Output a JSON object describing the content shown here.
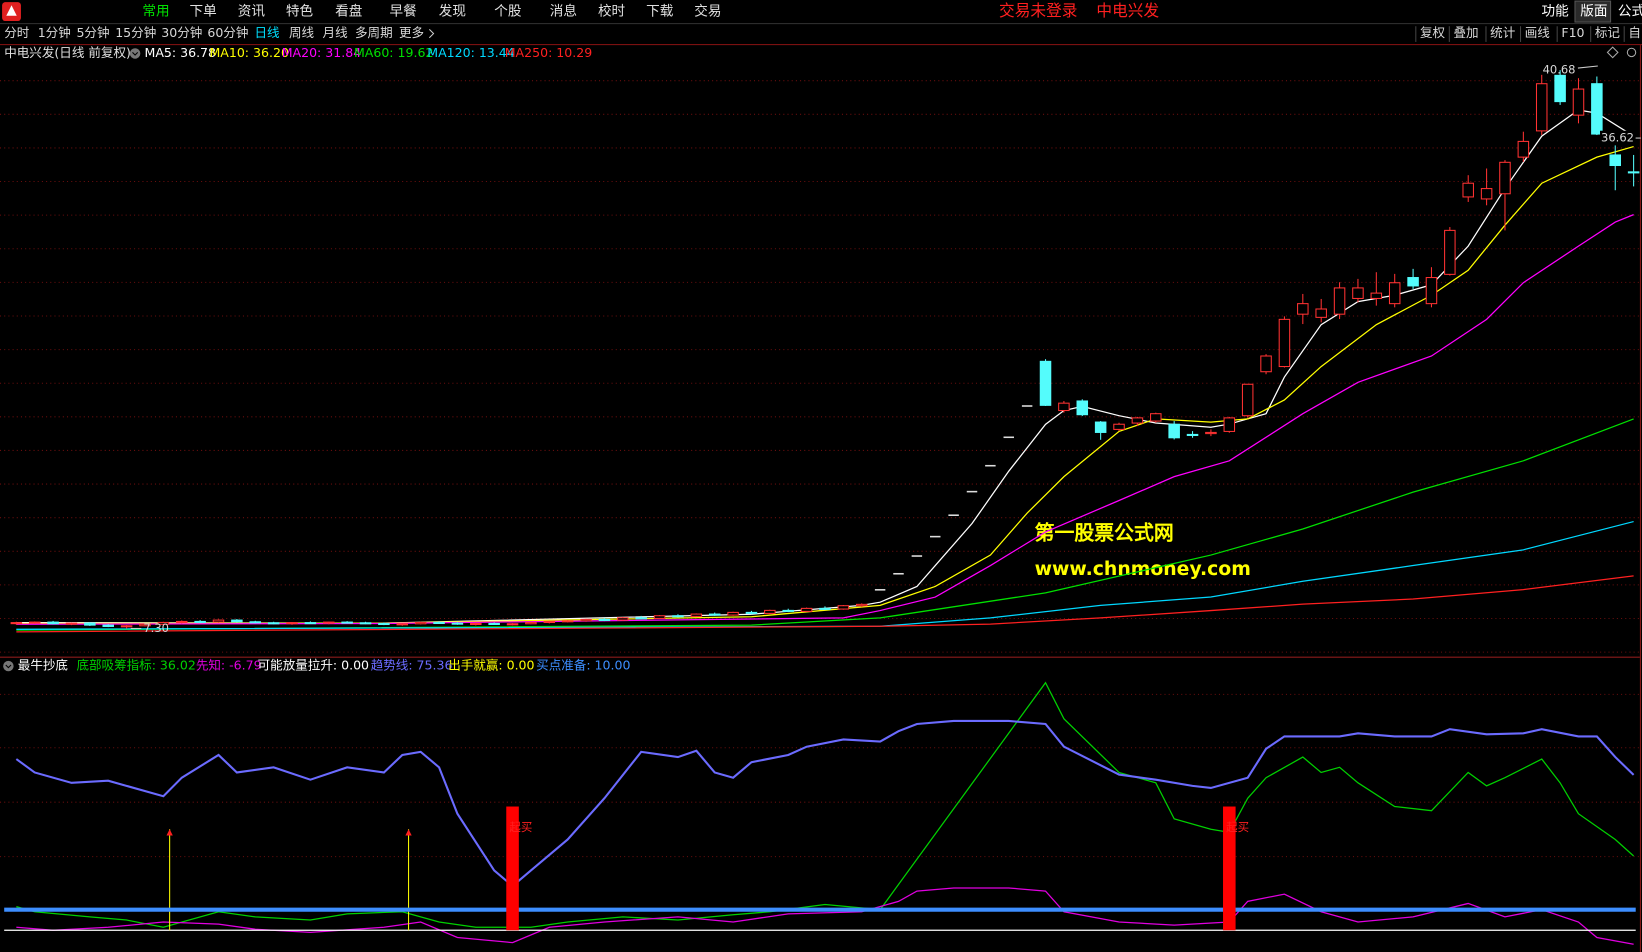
{
  "menu": {
    "items": [
      "常用",
      "下单",
      "资讯",
      "特色",
      "看盘",
      "早餐",
      "发现",
      "个股",
      "消息",
      "校时",
      "下载",
      "交易"
    ],
    "status": "交易未登录",
    "stock": "中电兴发",
    "right": [
      "功能",
      "版面",
      "公式"
    ]
  },
  "toolbar": {
    "periods": [
      "分时",
      "1分钟",
      "5分钟",
      "15分钟",
      "30分钟",
      "60分钟",
      "日线",
      "周线",
      "月线",
      "多周期",
      "更多"
    ],
    "tools": [
      "复权",
      "叠加",
      "统计",
      "画线",
      "F10",
      "标记",
      "自"
    ]
  },
  "watermark": {
    "title": "第一股票公式网",
    "url": "www.chnmoney.com"
  },
  "chart_data": [
    {
      "type": "candlestick",
      "title": "中电兴发(日线 前复权)",
      "ylim": [
        5.74,
        41.24
      ],
      "values": [
        [
          7.6,
          7.7,
          7.52,
          7.65
        ],
        [
          7.65,
          7.72,
          7.58,
          7.68
        ],
        [
          7.68,
          7.75,
          7.55,
          7.58
        ],
        [
          7.58,
          7.66,
          7.5,
          7.62
        ],
        [
          7.62,
          7.68,
          7.45,
          7.5
        ],
        [
          7.5,
          7.56,
          7.38,
          7.42
        ],
        [
          7.42,
          7.5,
          7.3,
          7.46
        ],
        [
          7.46,
          7.6,
          7.42,
          7.55
        ],
        [
          7.55,
          7.7,
          7.5,
          7.66
        ],
        [
          7.66,
          7.78,
          7.6,
          7.72
        ],
        [
          7.72,
          7.8,
          7.62,
          7.68
        ],
        [
          7.68,
          7.85,
          7.64,
          7.8
        ],
        [
          7.8,
          7.86,
          7.66,
          7.7
        ],
        [
          7.7,
          7.76,
          7.6,
          7.64
        ],
        [
          7.64,
          7.7,
          7.55,
          7.6
        ],
        [
          7.6,
          7.68,
          7.52,
          7.65
        ],
        [
          7.65,
          7.72,
          7.58,
          7.62
        ],
        [
          7.62,
          7.7,
          7.55,
          7.68
        ],
        [
          7.68,
          7.74,
          7.6,
          7.64
        ],
        [
          7.64,
          7.7,
          7.56,
          7.6
        ],
        [
          7.6,
          7.66,
          7.5,
          7.55
        ],
        [
          7.55,
          7.62,
          7.46,
          7.58
        ],
        [
          7.58,
          7.7,
          7.54,
          7.66
        ],
        [
          7.66,
          7.72,
          7.58,
          7.62
        ],
        [
          7.62,
          7.68,
          7.52,
          7.56
        ],
        [
          7.56,
          7.64,
          7.48,
          7.6
        ],
        [
          7.6,
          7.66,
          7.52,
          7.55
        ],
        [
          7.55,
          7.62,
          7.48,
          7.58
        ],
        [
          7.58,
          7.7,
          7.55,
          7.66
        ],
        [
          7.66,
          7.75,
          7.6,
          7.72
        ],
        [
          7.72,
          7.8,
          7.66,
          7.76
        ],
        [
          7.76,
          7.88,
          7.7,
          7.84
        ],
        [
          7.84,
          7.92,
          7.74,
          7.8
        ],
        [
          7.8,
          7.98,
          7.76,
          7.94
        ],
        [
          7.94,
          8.05,
          7.86,
          7.9
        ],
        [
          7.9,
          8.1,
          7.88,
          8.06
        ],
        [
          8.06,
          8.15,
          7.96,
          8.02
        ],
        [
          8.02,
          8.2,
          7.98,
          8.16
        ],
        [
          8.16,
          8.25,
          8.05,
          8.1
        ],
        [
          8.1,
          8.3,
          8.06,
          8.26
        ],
        [
          8.26,
          8.35,
          8.15,
          8.2
        ],
        [
          8.2,
          8.42,
          8.16,
          8.38
        ],
        [
          8.38,
          8.48,
          8.28,
          8.32
        ],
        [
          8.32,
          8.55,
          8.3,
          8.5
        ],
        [
          8.5,
          8.62,
          8.4,
          8.46
        ],
        [
          8.46,
          8.7,
          8.42,
          8.66
        ],
        [
          8.66,
          8.8,
          8.58,
          8.74
        ],
        [
          9.61,
          9.61,
          9.61,
          9.61
        ],
        [
          10.57,
          10.57,
          10.57,
          10.57
        ],
        [
          11.63,
          11.63,
          11.63,
          11.63
        ],
        [
          12.79,
          12.79,
          12.79,
          12.79
        ],
        [
          14.07,
          14.07,
          14.07,
          14.07
        ],
        [
          15.48,
          15.48,
          15.48,
          15.48
        ],
        [
          17.03,
          17.03,
          17.03,
          17.03
        ],
        [
          18.73,
          18.73,
          18.73,
          18.73
        ],
        [
          20.6,
          20.6,
          20.6,
          20.6
        ],
        [
          23.27,
          23.4,
          20.6,
          20.64
        ],
        [
          20.33,
          20.9,
          20.2,
          20.77
        ],
        [
          20.9,
          21.0,
          20.0,
          20.08
        ],
        [
          19.64,
          19.7,
          18.58,
          19.02
        ],
        [
          19.2,
          19.6,
          19.1,
          19.51
        ],
        [
          19.58,
          19.95,
          19.4,
          19.89
        ],
        [
          19.7,
          20.2,
          19.6,
          20.14
        ],
        [
          19.51,
          19.7,
          18.6,
          18.7
        ],
        [
          18.9,
          19.1,
          18.7,
          18.88
        ],
        [
          18.95,
          19.2,
          18.8,
          19.02
        ],
        [
          19.08,
          19.95,
          19.0,
          19.89
        ],
        [
          20.02,
          21.9,
          19.9,
          21.9
        ],
        [
          22.65,
          23.7,
          22.5,
          23.59
        ],
        [
          22.96,
          25.96,
          22.9,
          25.78
        ],
        [
          26.09,
          27.3,
          25.5,
          26.72
        ],
        [
          25.9,
          27.0,
          25.6,
          26.4
        ],
        [
          26.09,
          28.0,
          25.8,
          27.66
        ],
        [
          27.03,
          28.2,
          26.8,
          27.66
        ],
        [
          27.03,
          28.6,
          26.6,
          27.35
        ],
        [
          26.72,
          28.5,
          26.5,
          27.97
        ],
        [
          28.28,
          28.8,
          27.6,
          27.78
        ],
        [
          26.72,
          28.9,
          26.5,
          28.28
        ],
        [
          28.47,
          31.3,
          28.4,
          31.1
        ],
        [
          33.1,
          34.4,
          32.8,
          33.92
        ],
        [
          32.98,
          34.8,
          32.6,
          33.6
        ],
        [
          33.29,
          35.3,
          31.1,
          35.17
        ],
        [
          35.48,
          37.0,
          35.2,
          36.42
        ],
        [
          37.05,
          40.4,
          36.8,
          39.87
        ],
        [
          40.37,
          40.68,
          38.6,
          38.8
        ],
        [
          37.99,
          40.2,
          37.5,
          39.55
        ],
        [
          39.87,
          40.3,
          36.8,
          36.86
        ],
        [
          35.61,
          36.7,
          33.5,
          34.98
        ],
        [
          34.6,
          35.61,
          33.73,
          34.55
        ]
      ],
      "colors": {
        "up": "#ff3232",
        "down": "#54fcfc",
        "flat": "#dddddd"
      },
      "series": [
        {
          "label": "MA5: 36.78",
          "color": "#ffffff",
          "x": [
            0,
            20,
            40,
            46,
            47,
            49,
            50,
            52,
            54,
            56,
            57,
            58,
            60,
            62,
            65,
            66,
            68,
            69,
            71,
            73,
            75,
            77,
            79,
            81,
            83,
            85,
            86,
            88
          ],
          "values": [
            7.65,
            7.62,
            8.15,
            8.68,
            8.87,
            9.81,
            11.06,
            13.57,
            16.7,
            19.5,
            20.33,
            20.58,
            20.02,
            19.58,
            19.33,
            19.52,
            20.14,
            22.33,
            25.46,
            26.84,
            27.22,
            27.85,
            30.16,
            33.6,
            36.74,
            38.3,
            38.11,
            36.74
          ]
        },
        {
          "label": "MA10: 36.20",
          "color": "#ffff00",
          "x": [
            0,
            20,
            40,
            47,
            50,
            53,
            55,
            57,
            60,
            62,
            65,
            67,
            69,
            71,
            74,
            77,
            79,
            81,
            83,
            86,
            88
          ],
          "values": [
            7.6,
            7.62,
            8.0,
            8.68,
            9.81,
            11.69,
            14.2,
            16.38,
            19.08,
            19.83,
            19.64,
            19.83,
            20.96,
            22.96,
            25.46,
            27.22,
            28.72,
            31.41,
            33.92,
            35.48,
            36.11
          ]
        },
        {
          "label": "MA20: 31.84",
          "color": "#ff00ff",
          "x": [
            0,
            20,
            45,
            47,
            50,
            53,
            56,
            60,
            63,
            66,
            70,
            73,
            77,
            80,
            82,
            85,
            87,
            88
          ],
          "values": [
            7.55,
            7.6,
            7.93,
            8.37,
            9.18,
            11.06,
            13.07,
            14.95,
            16.38,
            17.32,
            20.14,
            22.02,
            23.59,
            25.78,
            27.97,
            30.16,
            31.6,
            32.04
          ]
        },
        {
          "label": "MA60: 19.62",
          "color": "#00e000",
          "x": [
            0,
            40,
            47,
            56,
            65,
            70,
            76,
            82,
            88
          ],
          "values": [
            7.2,
            7.5,
            7.93,
            9.43,
            11.69,
            13.25,
            15.45,
            17.32,
            19.83
          ]
        },
        {
          "label": "MA120: 13.44",
          "color": "#00d8ff",
          "x": [
            0,
            47,
            53,
            59,
            65,
            70,
            76,
            82,
            88
          ],
          "values": [
            7.25,
            7.43,
            7.93,
            8.68,
            9.18,
            10.12,
            11.06,
            12.0,
            13.69
          ]
        },
        {
          "label": "MA250: 10.29",
          "color": "#ff2020",
          "x": [
            0,
            47,
            53,
            59,
            65,
            70,
            76,
            82,
            88
          ],
          "values": [
            7.1,
            7.43,
            7.56,
            7.93,
            8.37,
            8.75,
            9.06,
            9.62,
            10.44
          ]
        }
      ],
      "annotations": [
        {
          "value": 40.68,
          "x": 84
        },
        {
          "value": 36.62,
          "x": 86
        },
        {
          "value": 7.3,
          "label": "7.30",
          "x": 6
        }
      ]
    },
    {
      "type": "indicator",
      "title": "最牛抄底",
      "ylim": [
        -10.5,
        122
      ],
      "series": [
        {
          "label": "底部吸筹指标: 36.02",
          "color": "#00d000",
          "kind": "line",
          "x": [
            0,
            1,
            4,
            6,
            8,
            11,
            13,
            16,
            18,
            21,
            23,
            25,
            28,
            30,
            33,
            36,
            39,
            41,
            44,
            47,
            56,
            57,
            60,
            62,
            63,
            65,
            66,
            67,
            68,
            70,
            71,
            72,
            73,
            75,
            77,
            79,
            80,
            81,
            83,
            84,
            85,
            87,
            88
          ],
          "values": [
            11.5,
            9,
            6.5,
            5,
            1.5,
            9,
            6.5,
            5,
            8,
            9,
            4,
            1.5,
            1.5,
            4,
            6.5,
            5,
            7.5,
            9,
            12.5,
            10,
            120,
            102.5,
            76.5,
            71.5,
            54,
            49,
            47.5,
            64,
            74,
            84,
            76.5,
            79,
            71.5,
            60,
            58,
            76.5,
            70,
            74,
            83,
            71.5,
            56.5,
            44,
            36.02
          ]
        },
        {
          "label": "先知: -6.79",
          "color": "#e000e0",
          "kind": "line",
          "x": [
            0,
            2,
            5,
            8,
            11,
            13,
            16,
            20,
            22,
            24,
            27,
            29,
            32,
            36,
            39,
            42,
            46,
            48,
            49,
            51,
            54,
            56,
            57,
            60,
            63,
            66,
            67,
            69,
            71,
            73,
            76,
            79,
            81,
            83,
            85,
            86,
            88
          ],
          "values": [
            1.5,
            0,
            1.5,
            4,
            3,
            0.5,
            -1,
            1.5,
            4,
            -3.5,
            -6,
            1.5,
            4,
            6.5,
            4,
            8,
            9,
            14,
            19,
            20.5,
            20.5,
            19,
            9,
            4,
            2.5,
            4,
            14,
            17.5,
            9,
            4,
            6.5,
            13,
            6.5,
            10,
            4,
            -3.5,
            -6.79
          ]
        },
        {
          "label": "可能放量拉升: 0.00",
          "color": "#ffffff",
          "kind": "hline",
          "value": 0
        },
        {
          "label": "趋势线: 75.36",
          "color": "#6b6bff",
          "kind": "line",
          "x": [
            0,
            1,
            3,
            5,
            8,
            9,
            11,
            12,
            14,
            16,
            18,
            20,
            21,
            22,
            23,
            24,
            26,
            27,
            28,
            30,
            32,
            34,
            36,
            37,
            38,
            39,
            40,
            42,
            43,
            45,
            47,
            48,
            49,
            51,
            54,
            56,
            57,
            60,
            62,
            64,
            65,
            67,
            68,
            69,
            72,
            73,
            75,
            77,
            78,
            80,
            82,
            83,
            85,
            86,
            87,
            88
          ],
          "values": [
            83,
            76.5,
            71.5,
            72.5,
            65,
            74,
            85,
            76.5,
            79,
            73,
            79,
            76.5,
            85,
            86.5,
            79,
            56.5,
            29,
            21.5,
            29,
            44,
            64,
            86.5,
            84,
            87,
            76.5,
            74,
            81.5,
            85,
            89,
            92.5,
            91.5,
            96.5,
            100,
            101.5,
            101.5,
            100,
            89,
            75.5,
            73,
            70,
            69,
            74,
            88,
            94,
            94,
            95.5,
            94,
            94,
            97.5,
            95,
            95.5,
            97.5,
            94,
            94,
            84,
            75.36
          ]
        },
        {
          "label": "出手就赢: 0.00",
          "color": "#ffff00",
          "kind": "arrow",
          "x": [
            8,
            21
          ],
          "values": [
            49,
            49
          ]
        },
        {
          "label": "买点准备: 10.00",
          "color": "#3d8eff",
          "kind": "hline",
          "value": 10
        }
      ],
      "signals": {
        "text": "起买",
        "color": "#ff0000",
        "x": [
          27,
          66
        ],
        "values": [
          60,
          60
        ]
      }
    }
  ]
}
